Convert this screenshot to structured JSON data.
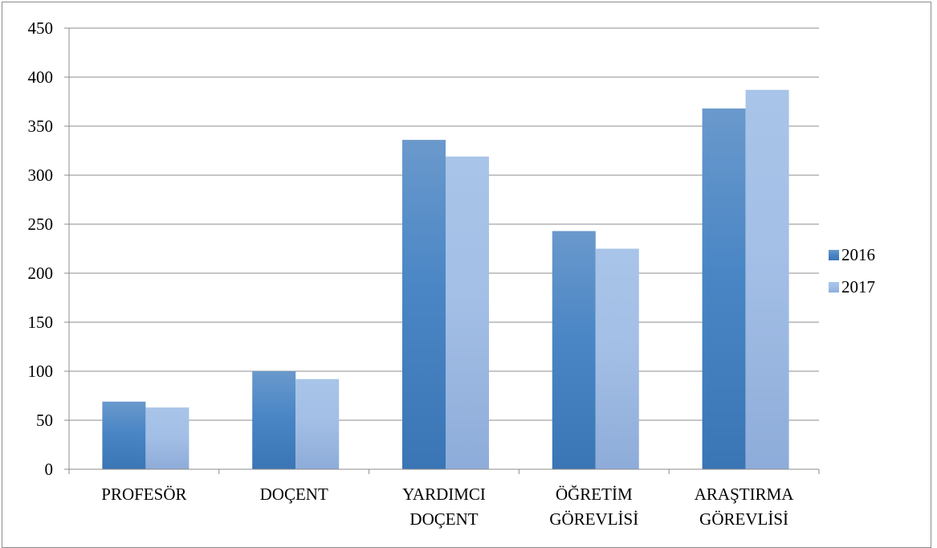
{
  "chart_data": {
    "type": "bar",
    "categories": [
      [
        "PROFESÖR"
      ],
      [
        "DOÇENT"
      ],
      [
        "YARDIMCI",
        "DOÇENT"
      ],
      [
        "ÖĞRETİM",
        "GÖREVLİSİ"
      ],
      [
        "ARAŞTIRMA",
        "GÖREVLİSİ"
      ]
    ],
    "series": [
      {
        "name": "2016",
        "values": [
          69,
          100,
          336,
          243,
          368
        ],
        "color": "#4a86c5",
        "color_top": "#6a99cc",
        "color_bottom": "#3a75b5"
      },
      {
        "name": "2017",
        "values": [
          63,
          92,
          319,
          225,
          387
        ],
        "color": "#a3bfe6",
        "color_top": "#a8c4e8",
        "color_bottom": "#8eacd9"
      }
    ],
    "ylim": [
      0,
      450
    ],
    "yticks": [
      0,
      50,
      100,
      150,
      200,
      250,
      300,
      350,
      400,
      450
    ],
    "grid": true,
    "legend": "right"
  }
}
